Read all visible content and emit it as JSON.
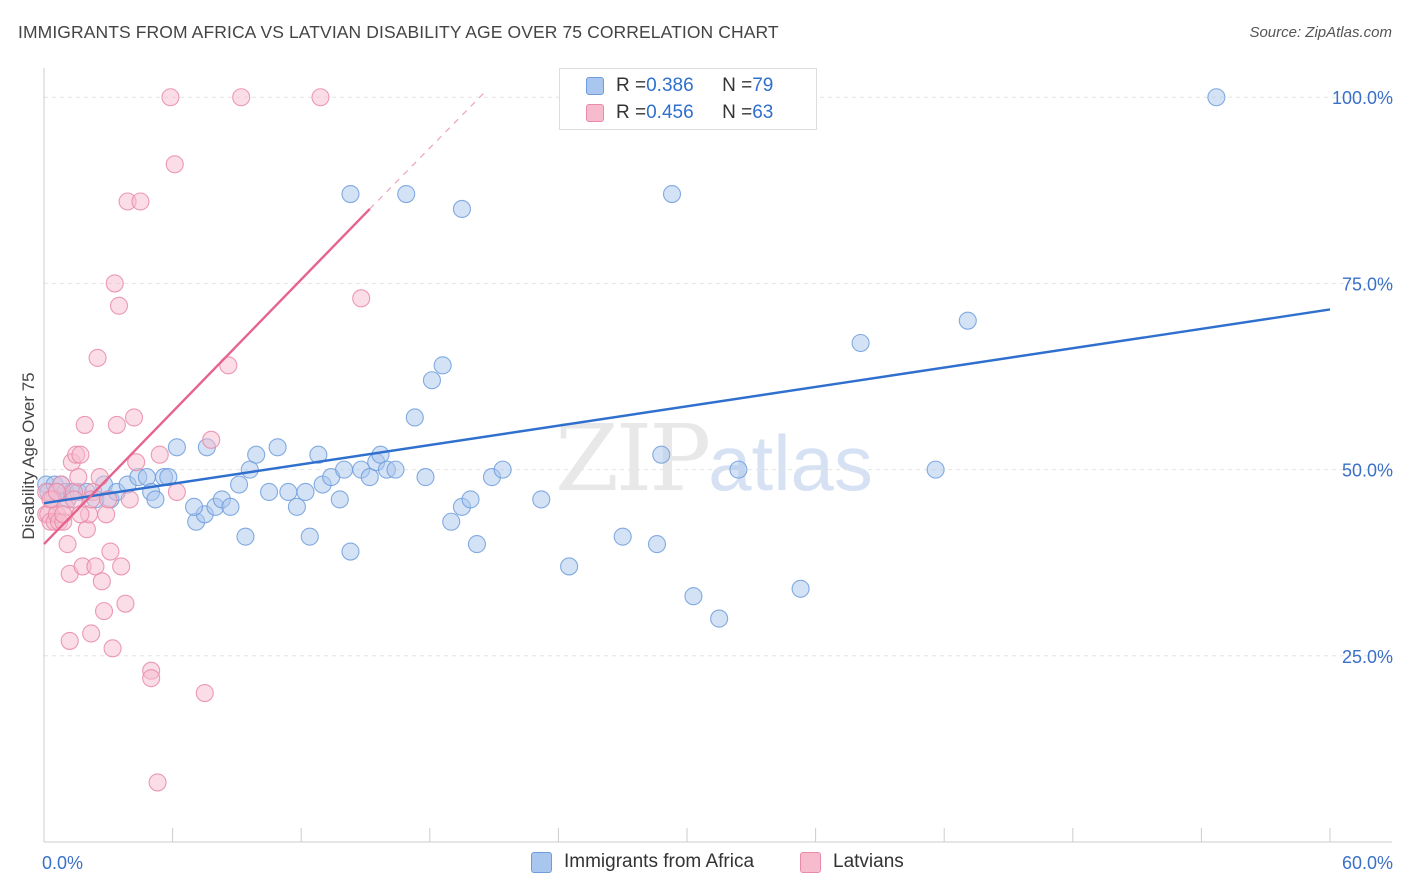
{
  "header": {
    "title": "IMMIGRANTS FROM AFRICA VS LATVIAN DISABILITY AGE OVER 75 CORRELATION CHART",
    "source": "Source: ZipAtlas.com"
  },
  "watermark": {
    "zip": "ZIP",
    "atlas": "atlas"
  },
  "legend_top": [
    {
      "r_label": "R = ",
      "r_value": "0.386",
      "n_label": "N = ",
      "n_value": "79"
    },
    {
      "r_label": "R = ",
      "r_value": "0.456",
      "n_label": "N = ",
      "n_value": "63"
    }
  ],
  "legend_bottom": [
    "Immigrants from Africa",
    "Latvians"
  ],
  "colors": {
    "africa_fill": "#a9c6ee",
    "africa_stroke": "#6f9ddc",
    "africa_line": "#2f6fce",
    "latvian_fill": "#f6bccd",
    "latvian_stroke": "#e98aa8",
    "latvian_line": "#e5638d",
    "axis_text": "#3a70c8",
    "grid": "#e4e4e4"
  },
  "chart_data": {
    "type": "scatter",
    "title": "IMMIGRANTS FROM AFRICA VS LATVIAN DISABILITY AGE OVER 75 CORRELATION CHART",
    "xlabel": "",
    "ylabel": "Disability Age Over 75",
    "xlim": [
      0,
      60
    ],
    "ylim": [
      0,
      105
    ],
    "x_tick_labels": [
      "0.0%",
      "60.0%"
    ],
    "y_ticks": [
      25,
      50,
      75,
      100
    ],
    "y_tick_labels": [
      "25.0%",
      "50.0%",
      "75.0%",
      "100.0%"
    ],
    "grid": true,
    "legend_position": "top-center",
    "series": [
      {
        "name": "Immigrants from Africa",
        "R": 0.386,
        "N": 79,
        "trend": {
          "x0": 0,
          "y0": 45.5,
          "x1": 60,
          "y1": 71.5
        },
        "points": [
          [
            0.1,
            48
          ],
          [
            0.2,
            47
          ],
          [
            0.4,
            46
          ],
          [
            0.5,
            48
          ],
          [
            0.6,
            47
          ],
          [
            0.8,
            48
          ],
          [
            1.0,
            47
          ],
          [
            1.1,
            46
          ],
          [
            1.3,
            47
          ],
          [
            1.6,
            47
          ],
          [
            2.0,
            47
          ],
          [
            2.4,
            46
          ],
          [
            2.8,
            48
          ],
          [
            3.1,
            46
          ],
          [
            3.4,
            47
          ],
          [
            3.9,
            48
          ],
          [
            4.4,
            49
          ],
          [
            4.8,
            49
          ],
          [
            5.0,
            47
          ],
          [
            5.2,
            46
          ],
          [
            5.6,
            49
          ],
          [
            5.8,
            49
          ],
          [
            6.2,
            53
          ],
          [
            7.1,
            43
          ],
          [
            7.5,
            44
          ],
          [
            7.6,
            53
          ],
          [
            8.0,
            45
          ],
          [
            8.3,
            46
          ],
          [
            8.7,
            45
          ],
          [
            9.1,
            48
          ],
          [
            9.4,
            41
          ],
          [
            9.6,
            50
          ],
          [
            9.9,
            52
          ],
          [
            10.5,
            47
          ],
          [
            10.9,
            53
          ],
          [
            11.4,
            47
          ],
          [
            11.8,
            45
          ],
          [
            12.2,
            47
          ],
          [
            12.4,
            41
          ],
          [
            12.8,
            52
          ],
          [
            13.0,
            48
          ],
          [
            13.4,
            49
          ],
          [
            13.8,
            46
          ],
          [
            14.0,
            50
          ],
          [
            14.3,
            39
          ],
          [
            14.8,
            50
          ],
          [
            15.2,
            49
          ],
          [
            15.5,
            51
          ],
          [
            15.7,
            52
          ],
          [
            16.0,
            50
          ],
          [
            16.4,
            50
          ],
          [
            17.3,
            57
          ],
          [
            17.8,
            49
          ],
          [
            18.1,
            62
          ],
          [
            18.6,
            64
          ],
          [
            19.0,
            43
          ],
          [
            19.5,
            45
          ],
          [
            19.9,
            46
          ],
          [
            20.2,
            40
          ],
          [
            20.9,
            49
          ],
          [
            21.4,
            50
          ],
          [
            23.2,
            46
          ],
          [
            24.5,
            37
          ],
          [
            27.0,
            41
          ],
          [
            28.6,
            40
          ],
          [
            28.8,
            52
          ],
          [
            29.3,
            87
          ],
          [
            30.3,
            33
          ],
          [
            31.5,
            30
          ],
          [
            32.4,
            50
          ],
          [
            35.3,
            34
          ],
          [
            38.1,
            67
          ],
          [
            41.6,
            50
          ],
          [
            43.1,
            70
          ],
          [
            54.7,
            100
          ],
          [
            14.3,
            87
          ],
          [
            16.9,
            87
          ],
          [
            19.5,
            85
          ],
          [
            7.0,
            45
          ]
        ]
      },
      {
        "name": "Latvians",
        "R": 0.456,
        "N": 63,
        "trend": {
          "x0": 0,
          "y0": 40,
          "x1": 15.2,
          "y1": 85,
          "dash_to": {
            "x": 20.5,
            "y": 100.5
          }
        },
        "points": [
          [
            0.1,
            47
          ],
          [
            0.1,
            44
          ],
          [
            0.2,
            44
          ],
          [
            0.3,
            43
          ],
          [
            0.4,
            46
          ],
          [
            0.5,
            43
          ],
          [
            0.6,
            44
          ],
          [
            0.7,
            43
          ],
          [
            0.8,
            48
          ],
          [
            0.9,
            43
          ],
          [
            1.0,
            45
          ],
          [
            1.1,
            40
          ],
          [
            1.2,
            36
          ],
          [
            1.2,
            27
          ],
          [
            1.3,
            51
          ],
          [
            1.4,
            47
          ],
          [
            1.5,
            52
          ],
          [
            1.6,
            49
          ],
          [
            1.7,
            52
          ],
          [
            1.8,
            37
          ],
          [
            1.9,
            56
          ],
          [
            2.0,
            42
          ],
          [
            2.1,
            44
          ],
          [
            2.2,
            28
          ],
          [
            2.3,
            47
          ],
          [
            2.4,
            37
          ],
          [
            2.5,
            65
          ],
          [
            2.6,
            49
          ],
          [
            2.7,
            35
          ],
          [
            2.8,
            31
          ],
          [
            2.9,
            44
          ],
          [
            3.0,
            46
          ],
          [
            3.1,
            39
          ],
          [
            3.2,
            26
          ],
          [
            3.3,
            75
          ],
          [
            3.4,
            56
          ],
          [
            3.5,
            72
          ],
          [
            3.6,
            37
          ],
          [
            3.8,
            32
          ],
          [
            3.9,
            86
          ],
          [
            4.0,
            46
          ],
          [
            4.2,
            57
          ],
          [
            4.3,
            51
          ],
          [
            4.5,
            86
          ],
          [
            5.0,
            23
          ],
          [
            5.0,
            22
          ],
          [
            5.3,
            8
          ],
          [
            5.4,
            52
          ],
          [
            5.9,
            100
          ],
          [
            6.1,
            91
          ],
          [
            6.2,
            47
          ],
          [
            7.5,
            20
          ],
          [
            7.8,
            54
          ],
          [
            8.6,
            64
          ],
          [
            9.2,
            100
          ],
          [
            12.9,
            100
          ],
          [
            14.8,
            73
          ],
          [
            0.3,
            46
          ],
          [
            0.6,
            47
          ],
          [
            0.9,
            44
          ],
          [
            1.4,
            46
          ],
          [
            1.7,
            44
          ],
          [
            2.2,
            46
          ]
        ]
      }
    ]
  }
}
